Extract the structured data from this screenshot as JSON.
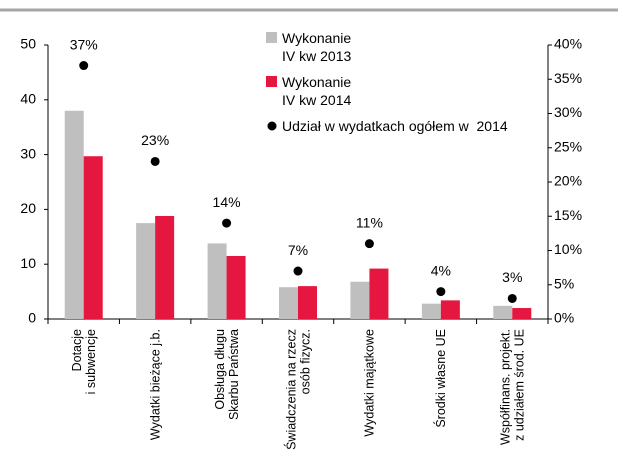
{
  "chart_data": {
    "type": "bar",
    "categories": [
      [
        "Dotacje",
        "i subwencje"
      ],
      [
        "Wydatki bieżące j.b."
      ],
      [
        "Obsługa długu",
        "Skarbu Państwa"
      ],
      [
        "Świadczenia na rzecz",
        "osób fizycz."
      ],
      [
        "Wydatki majątkowe"
      ],
      [
        "Środki własne UE"
      ],
      [
        "Współfinans. projekt.",
        "z udziałem środ. UE"
      ]
    ],
    "series": [
      {
        "name": "Wykonanie IV kw 2013",
        "color": "#bfbfbf",
        "values": [
          38,
          17.5,
          13.8,
          5.8,
          6.8,
          2.8,
          2.4
        ]
      },
      {
        "name": "Wykonanie IV kw 2014",
        "color": "#e5163f",
        "values": [
          29.7,
          18.8,
          11.5,
          6,
          9.2,
          3.4,
          2
        ]
      },
      {
        "name": "Udział w wydatkach ogółem w  2014",
        "color": "#000000",
        "axis": "y2",
        "values": [
          37,
          23,
          14,
          7,
          11,
          4,
          3
        ],
        "value_labels": [
          "37%",
          "23%",
          "14%",
          "7%",
          "11%",
          "4%",
          "3%"
        ]
      }
    ],
    "ylim": [
      0,
      50
    ],
    "yticks": [
      0,
      10,
      20,
      30,
      40,
      50
    ],
    "y2lim": [
      0,
      40
    ],
    "y2ticks": [
      {
        "value": 0,
        "label": "0%"
      },
      {
        "value": 5,
        "label": "5%"
      },
      {
        "value": 10,
        "label": "10%"
      },
      {
        "value": 15,
        "label": "15%"
      },
      {
        "value": 20,
        "label": "20%"
      },
      {
        "value": 25,
        "label": "25%"
      },
      {
        "value": 30,
        "label": "30%"
      },
      {
        "value": 35,
        "label": "35%"
      },
      {
        "value": 40,
        "label": "40%"
      }
    ],
    "grid": false
  }
}
